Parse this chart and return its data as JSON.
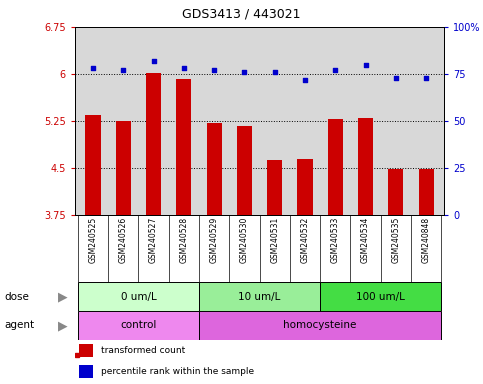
{
  "title": "GDS3413 / 443021",
  "samples": [
    "GSM240525",
    "GSM240526",
    "GSM240527",
    "GSM240528",
    "GSM240529",
    "GSM240530",
    "GSM240531",
    "GSM240532",
    "GSM240533",
    "GSM240534",
    "GSM240535",
    "GSM240848"
  ],
  "bar_values": [
    5.35,
    5.25,
    6.02,
    5.92,
    5.22,
    5.17,
    4.62,
    4.64,
    5.28,
    5.3,
    4.48,
    4.48
  ],
  "dot_values": [
    78,
    77,
    82,
    78,
    77,
    76,
    76,
    72,
    77,
    80,
    73,
    73
  ],
  "bar_color": "#cc0000",
  "dot_color": "#0000cc",
  "ylim_left": [
    3.75,
    6.75
  ],
  "ylim_right": [
    0,
    100
  ],
  "yticks_left": [
    3.75,
    4.5,
    5.25,
    6.0,
    6.75
  ],
  "yticks_right": [
    0,
    25,
    50,
    75,
    100
  ],
  "ytick_labels_left": [
    "3.75",
    "4.5",
    "5.25",
    "6",
    "6.75"
  ],
  "ytick_labels_right": [
    "0",
    "25",
    "50",
    "75",
    "100%"
  ],
  "hlines": [
    4.5,
    5.25,
    6.0
  ],
  "dose_groups": [
    {
      "label": "0 um/L",
      "start": 0,
      "end": 4,
      "color": "#ccffcc"
    },
    {
      "label": "10 um/L",
      "start": 4,
      "end": 8,
      "color": "#99ee99"
    },
    {
      "label": "100 um/L",
      "start": 8,
      "end": 12,
      "color": "#44dd44"
    }
  ],
  "agent_groups": [
    {
      "label": "control",
      "start": 0,
      "end": 4,
      "color": "#ee88ee"
    },
    {
      "label": "homocysteine",
      "start": 4,
      "end": 12,
      "color": "#dd66dd"
    }
  ],
  "dose_label": "dose",
  "agent_label": "agent",
  "legend_bar": "transformed count",
  "legend_dot": "percentile rank within the sample",
  "background_color": "#ffffff",
  "plot_bg_color": "#d8d8d8",
  "bar_width": 0.5
}
